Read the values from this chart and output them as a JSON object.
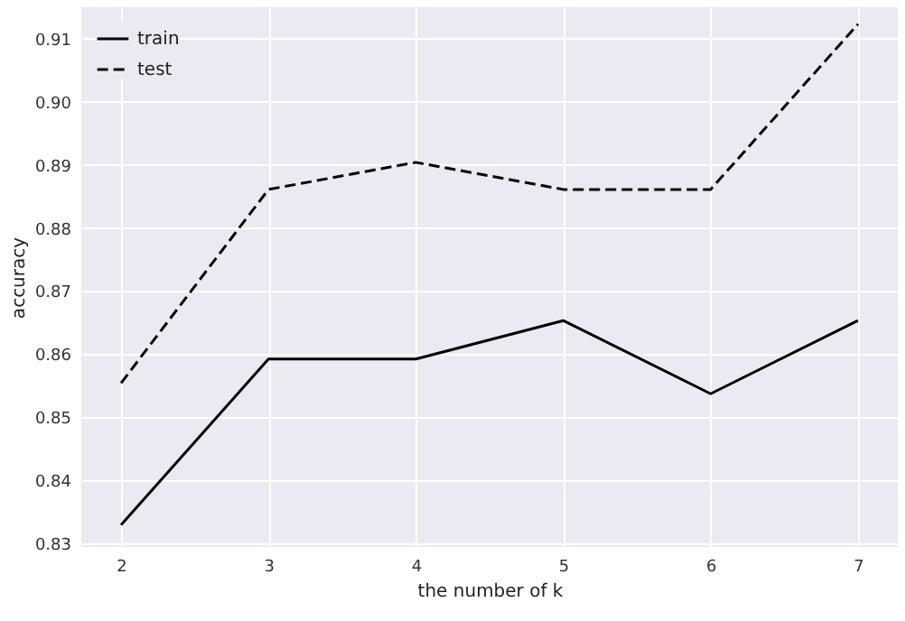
{
  "chart_data": {
    "type": "line",
    "xlabel": "the number of k",
    "ylabel": "accuracy",
    "x": [
      2,
      3,
      4,
      5,
      6,
      7
    ],
    "series": [
      {
        "name": "train",
        "color": "#000000",
        "line_style": "solid",
        "values": [
          0.8329,
          0.8592,
          0.8592,
          0.8653,
          0.8537,
          0.8653
        ]
      },
      {
        "name": "test",
        "color": "#000000",
        "line_style": "dashed",
        "values": [
          0.8554,
          0.8861,
          0.8904,
          0.8861,
          0.8861,
          0.9123
        ]
      }
    ],
    "xlim": [
      1.73,
      7.27
    ],
    "xticks": [
      2,
      3,
      4,
      5,
      6,
      7
    ],
    "ylim": [
      0.8294,
      0.915
    ],
    "yticks": [
      0.83,
      0.84,
      0.85,
      0.86,
      0.87,
      0.88,
      0.89,
      {
        "value": 0.9,
        "label": "0.90"
      },
      0.91
    ],
    "grid": true,
    "legend": "top left",
    "marker": "none"
  }
}
